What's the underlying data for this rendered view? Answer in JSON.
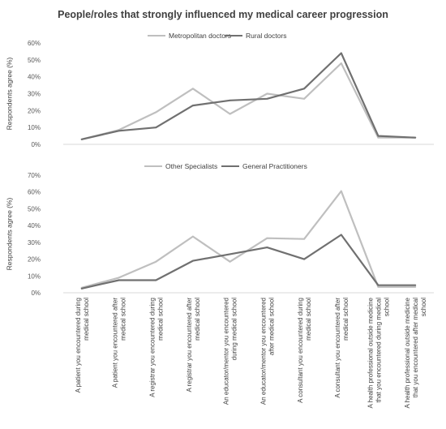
{
  "title": "People/roles that strongly influenced my medical career progression",
  "colors": {
    "light": "#bfbfbf",
    "dark": "#707070",
    "axis": "#d9d9d9",
    "text": "#404040"
  },
  "chart_data": [
    {
      "type": "line",
      "ylabel": "Respondents agree (%)",
      "ylim": [
        0,
        60
      ],
      "yticks": [
        "0%",
        "10%",
        "20%",
        "30%",
        "40%",
        "50%",
        "60%"
      ],
      "legend": "top-center",
      "grid": false,
      "series": [
        {
          "name": "Metropolitan doctors",
          "color": "#bfbfbf",
          "values": [
            3,
            8.5,
            19,
            33,
            18,
            30,
            27,
            48,
            4,
            4
          ]
        },
        {
          "name": "Rural doctors",
          "color": "#707070",
          "values": [
            3,
            8,
            10,
            23,
            26,
            27,
            33,
            54,
            5,
            4
          ]
        }
      ]
    },
    {
      "type": "line",
      "ylabel": "Respondents agree (%)",
      "ylim": [
        0,
        70
      ],
      "yticks": [
        "0%",
        "10%",
        "20%",
        "30%",
        "40%",
        "50%",
        "60%",
        "70%"
      ],
      "legend": "top-center",
      "grid": false,
      "categories": [
        [
          "A patient you encountered during",
          "medical school"
        ],
        [
          "A patient you encountered after",
          "medical school"
        ],
        [
          "A registrar you encountered during",
          "medical school"
        ],
        [
          "A registrar you encountered after",
          "medical school"
        ],
        [
          "An educator/mentor you encountered",
          "during medical school"
        ],
        [
          "An educator/mentor you encountered",
          "after medical school"
        ],
        [
          "A consultant you encountered during",
          "medical school"
        ],
        [
          "A consultant you encountered after",
          "medical school"
        ],
        [
          "A health professional outside medicine",
          "that you encountered during medical",
          "school"
        ],
        [
          "A health professional outside medicine",
          "that you encountered after medical",
          "school"
        ]
      ],
      "series": [
        {
          "name": "Other Specialists",
          "color": "#bfbfbf",
          "values": [
            3,
            9,
            18.5,
            33.5,
            18.5,
            32.5,
            32,
            60.5,
            3.5,
            3.5
          ]
        },
        {
          "name": "General Practitioners",
          "color": "#707070",
          "values": [
            2.5,
            7.5,
            7.5,
            19,
            23,
            27,
            20,
            34.5,
            4.5,
            4.5
          ]
        }
      ]
    }
  ]
}
